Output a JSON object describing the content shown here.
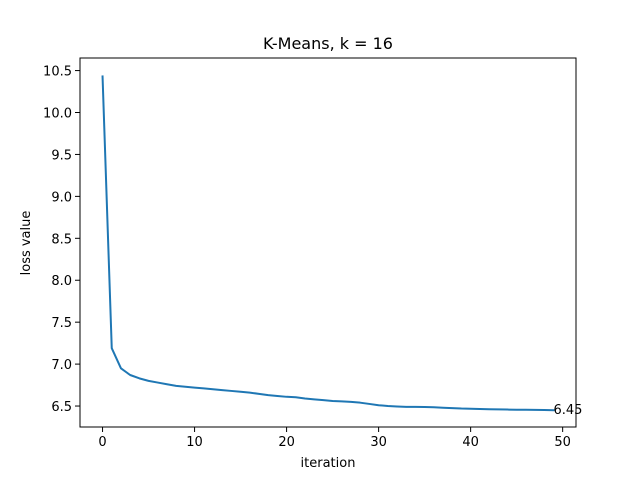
{
  "chart_data": {
    "type": "line",
    "title": "K-Means, k = 16",
    "xlabel": "iteration",
    "ylabel": "loss value",
    "xlim": [
      -2.45,
      51.45
    ],
    "ylim": [
      6.25,
      10.65
    ],
    "xticks": [
      0,
      10,
      20,
      30,
      40,
      50
    ],
    "xtick_labels": [
      "0",
      "10",
      "20",
      "30",
      "40",
      "50"
    ],
    "yticks": [
      6.5,
      7.0,
      7.5,
      8.0,
      8.5,
      9.0,
      9.5,
      10.0,
      10.5
    ],
    "ytick_labels": [
      "6.5",
      "7.0",
      "7.5",
      "8.0",
      "8.5",
      "9.0",
      "9.5",
      "10.0",
      "10.5"
    ],
    "grid": false,
    "series": [
      {
        "color": "#1f77b4",
        "x": [
          0,
          1,
          2,
          3,
          4,
          5,
          6,
          7,
          8,
          9,
          10,
          11,
          12,
          13,
          14,
          15,
          16,
          17,
          18,
          19,
          20,
          21,
          22,
          23,
          24,
          25,
          26,
          27,
          28,
          29,
          30,
          31,
          32,
          33,
          34,
          35,
          36,
          37,
          38,
          39,
          40,
          41,
          42,
          43,
          44,
          45,
          46,
          47,
          48,
          49
        ],
        "y": [
          10.43,
          7.19,
          6.95,
          6.87,
          6.83,
          6.8,
          6.78,
          6.76,
          6.74,
          6.73,
          6.72,
          6.71,
          6.7,
          6.69,
          6.68,
          6.67,
          6.66,
          6.645,
          6.63,
          6.62,
          6.61,
          6.605,
          6.59,
          6.58,
          6.57,
          6.56,
          6.555,
          6.55,
          6.54,
          6.525,
          6.51,
          6.5,
          6.495,
          6.49,
          6.49,
          6.488,
          6.485,
          6.48,
          6.475,
          6.47,
          6.468,
          6.465,
          6.462,
          6.46,
          6.458,
          6.456,
          6.455,
          6.454,
          6.452,
          6.45
        ]
      }
    ],
    "annotations": [
      {
        "text": "6.45",
        "x": 49,
        "y": 6.45
      }
    ]
  }
}
